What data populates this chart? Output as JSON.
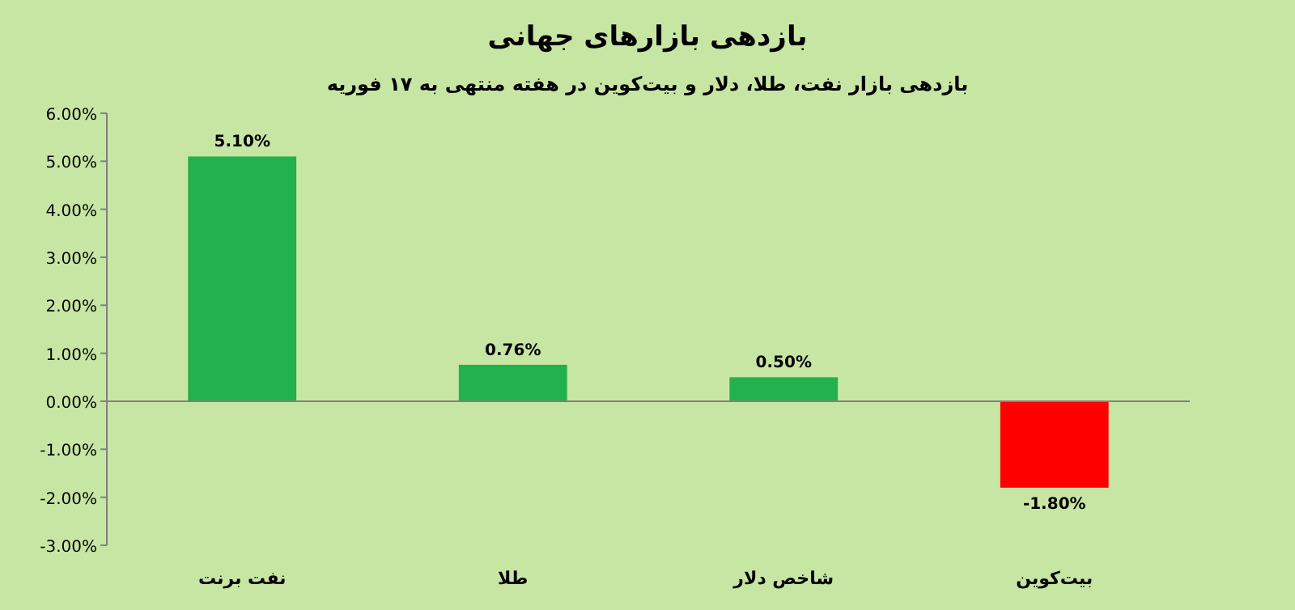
{
  "chart_data": {
    "type": "bar",
    "title": "بازدهی بازارهای جهانی",
    "subtitle": "بازدهی بازار نفت، طلا، دلار و بیت‌کوین در هفته منتهی به ۱۷ فوریه",
    "categories": [
      "نفت برنت",
      "طلا",
      "شاخص دلار",
      "بیت‌کوین"
    ],
    "values": [
      5.1,
      0.76,
      0.5,
      -1.8
    ],
    "colors": [
      "#22b14c",
      "#22b14c",
      "#22b14c",
      "#ff0000"
    ],
    "value_labels": [
      "5.10%",
      "0.76%",
      "0.50%",
      "-1.80%"
    ],
    "ylim": [
      -3,
      6
    ],
    "yticks": [
      {
        "value": -3,
        "label": "-3.00%"
      },
      {
        "value": -2,
        "label": "-2.00%"
      },
      {
        "value": -1,
        "label": "-1.00%"
      },
      {
        "value": 0,
        "label": "0.00%"
      },
      {
        "value": 1,
        "label": "1.00%"
      },
      {
        "value": 2,
        "label": "2.00%"
      },
      {
        "value": 3,
        "label": "3.00%"
      },
      {
        "value": 4,
        "label": "4.00%"
      },
      {
        "value": 5,
        "label": "5.00%"
      },
      {
        "value": 6,
        "label": "6.00%"
      }
    ]
  }
}
